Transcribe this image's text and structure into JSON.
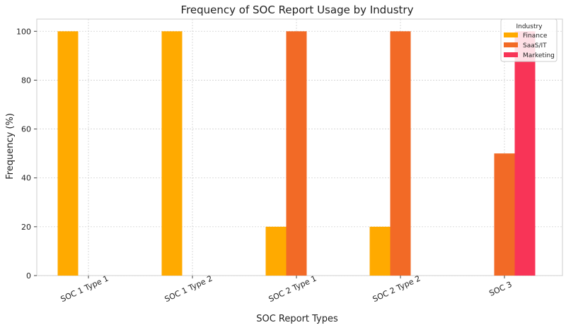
{
  "chart_data": {
    "type": "bar",
    "title": "Frequency of SOC Report Usage by Industry",
    "xlabel": "SOC Report Types",
    "ylabel": "Frequency (%)",
    "categories": [
      "SOC 1 Type 1",
      "SOC 1 Type 2",
      "SOC 2 Type 1",
      "SOC 2 Type 2",
      "SOC 3"
    ],
    "series": [
      {
        "name": "Finance",
        "color": "#FFAA00",
        "values": [
          100,
          100,
          20,
          20,
          0
        ]
      },
      {
        "name": "SaaS/IT",
        "color": "#F26A26",
        "values": [
          0,
          0,
          100,
          100,
          50
        ]
      },
      {
        "name": "Marketing",
        "color": "#F83457",
        "values": [
          0,
          0,
          0,
          0,
          100
        ]
      }
    ],
    "yticks": [
      0,
      20,
      40,
      60,
      80,
      100
    ],
    "ylim": [
      0,
      105
    ],
    "grid": true,
    "legend": {
      "title": "Industry",
      "placement": "top-right"
    }
  }
}
